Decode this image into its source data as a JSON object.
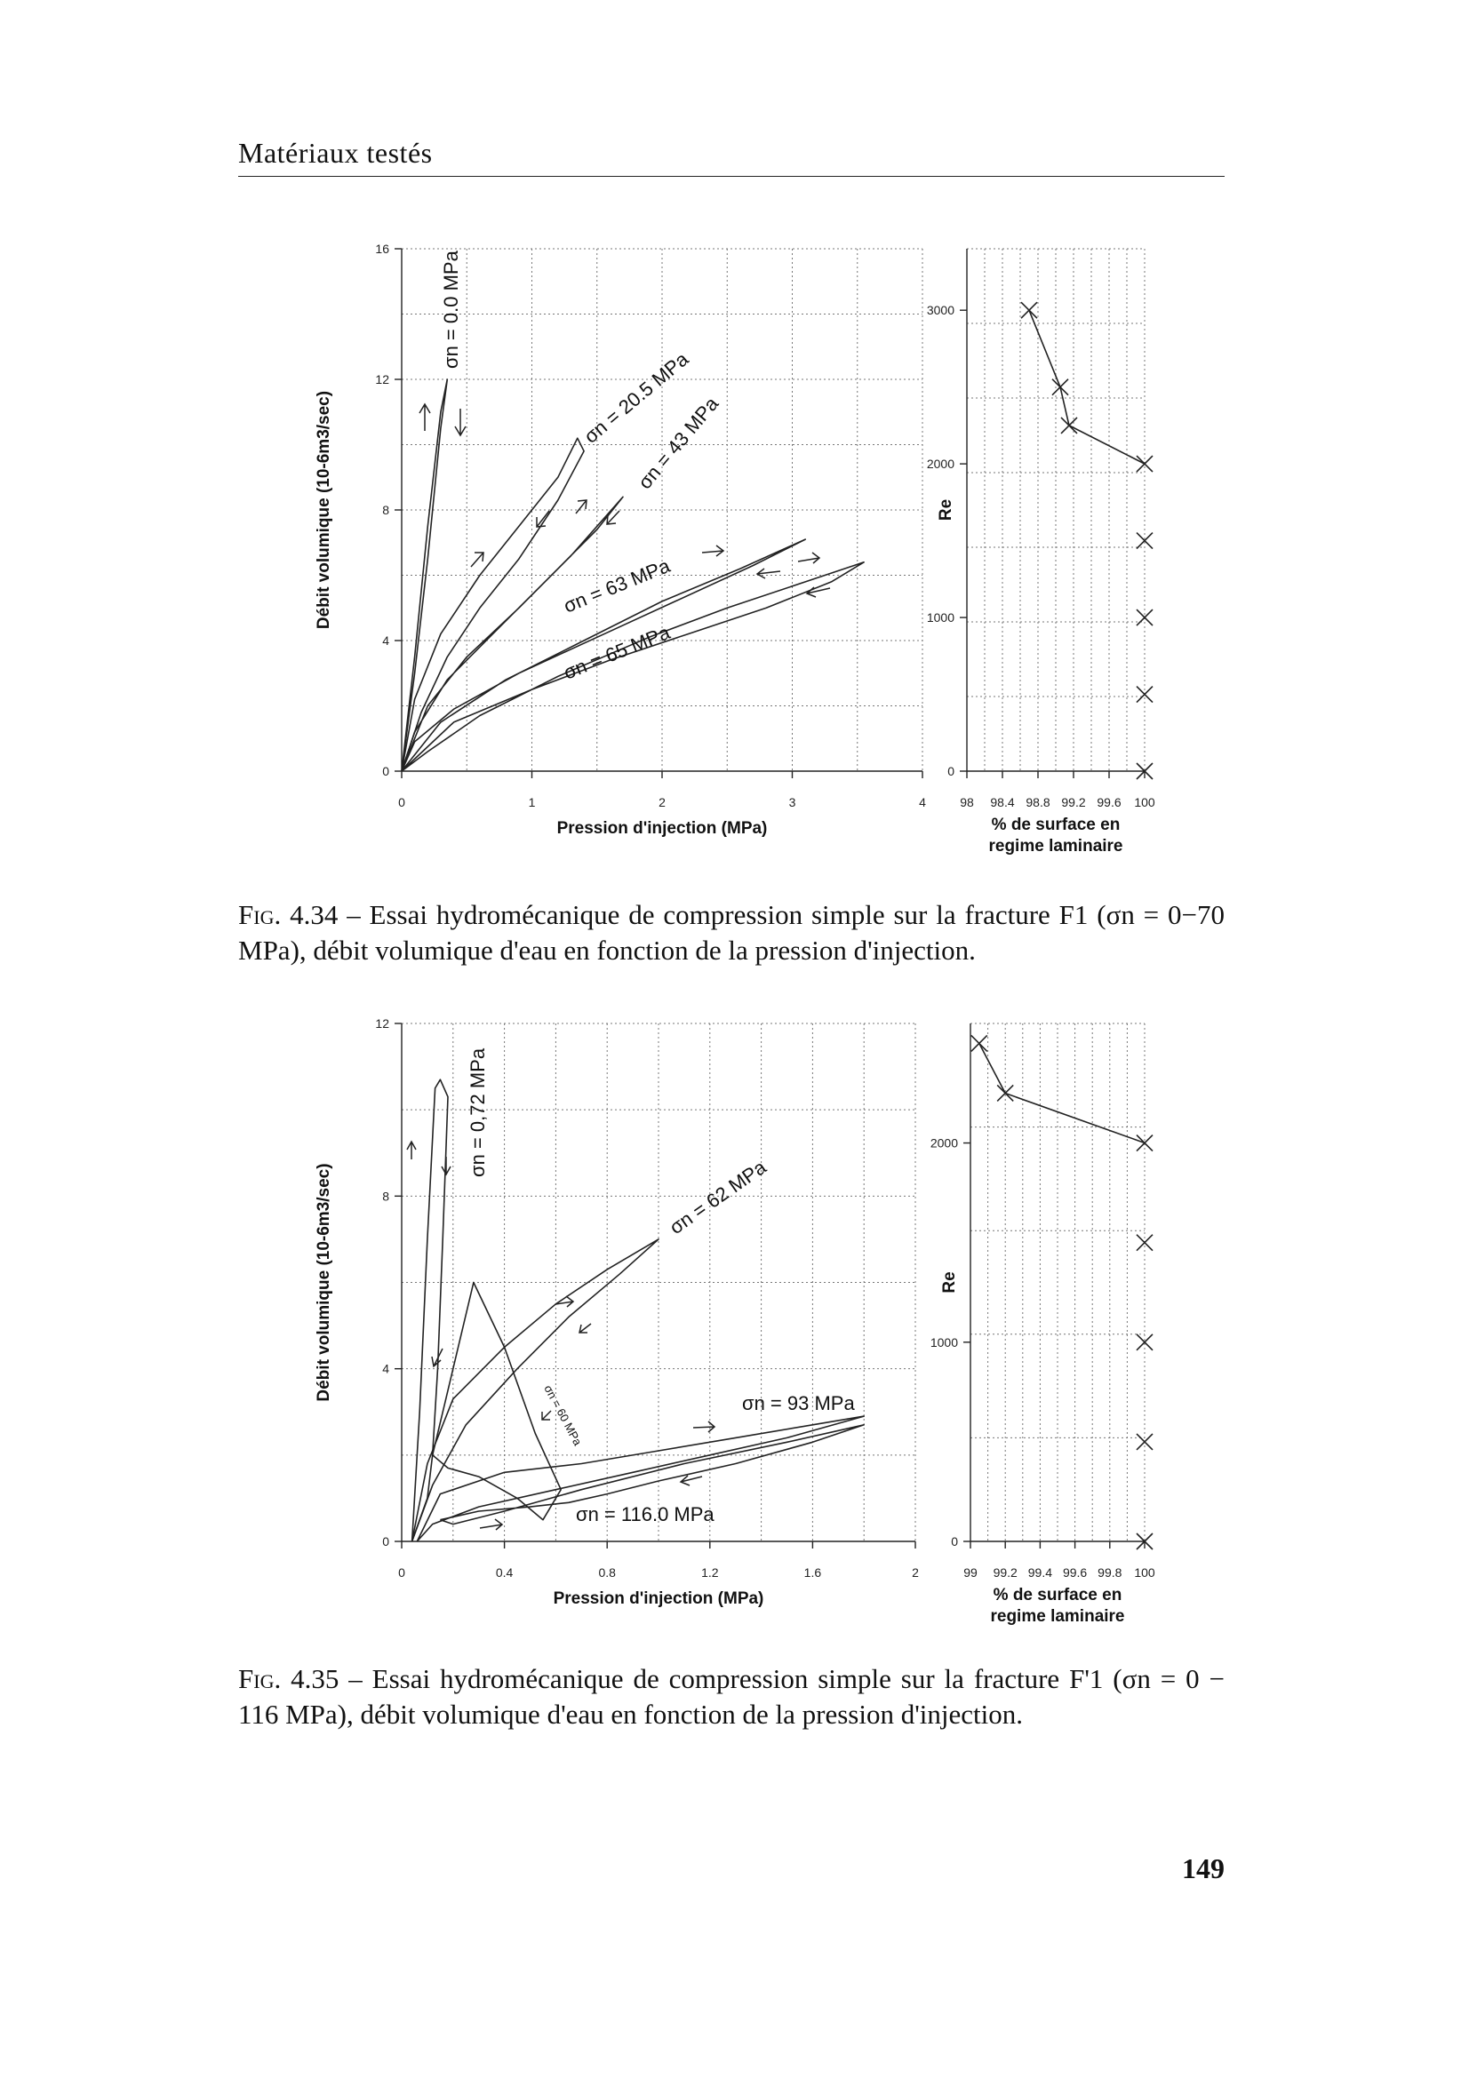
{
  "header": {
    "title": "Matériaux testés"
  },
  "figure1": {
    "caption_label": "Fig. 4.34",
    "caption_text": " – Essai hydromécanique de compression simple sur la fracture F1 (σn = 0−70 MPa), débit volumique d'eau en fonction de la pression d'injection."
  },
  "figure2": {
    "caption_label": "Fig. 4.35",
    "caption_text": " – Essai hydromécanique de compression simple sur la fracture F'1 (σn = 0 − 116 MPa), débit volumique d'eau en fonction de la pression d'injection."
  },
  "page_number": "149",
  "chart_data": [
    {
      "type": "line",
      "id": "fig434-left",
      "xlabel": "Pression d'injection (MPa)",
      "ylabel": "Débit volumique (10-6m3/sec)",
      "xlim": [
        0,
        4
      ],
      "ylim": [
        0,
        16
      ],
      "xticks": [
        "0",
        "1",
        "2",
        "3",
        "4"
      ],
      "yticks": [
        "0",
        "4",
        "8",
        "12",
        "16"
      ],
      "grid": true,
      "series": [
        {
          "name": "σn = 0.0 MPa",
          "x": [
            0,
            0.1,
            0.2,
            0.3,
            0.35,
            0.3,
            0.2,
            0.1,
            0
          ],
          "y": [
            0,
            3.5,
            7.5,
            11,
            12,
            10.5,
            6.5,
            3,
            0
          ]
        },
        {
          "name": "σn = 20.5 MPa",
          "x": [
            0,
            0.1,
            0.3,
            0.6,
            0.9,
            1.2,
            1.35,
            1.4,
            1.2,
            0.9,
            0.6,
            0.35,
            0.15,
            0
          ],
          "y": [
            0,
            2.2,
            4.2,
            6,
            7.5,
            9,
            10.2,
            9.8,
            8.3,
            6.5,
            5,
            3.5,
            1.8,
            0
          ]
        },
        {
          "name": "σn = 43 MPa",
          "x": [
            0,
            0.2,
            0.5,
            0.9,
            1.3,
            1.7,
            1.5,
            1.1,
            0.7,
            0.35,
            0.1,
            0
          ],
          "y": [
            0,
            2,
            3.5,
            5,
            6.6,
            8.4,
            7.4,
            5.8,
            4.2,
            2.8,
            1.2,
            0
          ]
        },
        {
          "name": "σn = 63 MPa",
          "x": [
            0,
            0.3,
            0.8,
            1.4,
            2,
            2.6,
            3.1,
            2.7,
            2.1,
            1.5,
            0.9,
            0.4,
            0.1,
            0
          ],
          "y": [
            0,
            1.5,
            2.8,
            4,
            5.2,
            6.2,
            7.1,
            6.3,
            5.2,
            4.1,
            3,
            1.9,
            0.9,
            0
          ]
        },
        {
          "name": "σn = 65 MPa",
          "x": [
            0,
            0.4,
            1,
            1.6,
            2.2,
            2.8,
            3.3,
            3.55,
            3.1,
            2.5,
            1.9,
            1.2,
            0.6,
            0.2,
            0
          ],
          "y": [
            0,
            1.5,
            2.5,
            3.4,
            4.2,
            5,
            5.8,
            6.4,
            5.8,
            5,
            4.1,
            2.9,
            1.7,
            0.6,
            0
          ]
        }
      ],
      "annotations": [
        "σn = 0.0 MPa",
        "σn = 20.5 MPa",
        "σn = 43 MPa",
        "σn = 63 MPa",
        "σn = 65 MPa"
      ]
    },
    {
      "type": "scatter",
      "id": "fig434-right",
      "xlabel": "% de surface en regime laminaire",
      "ylabel": "Re",
      "xlim": [
        98,
        100
      ],
      "ylim": [
        0,
        3400
      ],
      "xticks": [
        "98",
        "98.4",
        "98.8",
        "99.2",
        "99.6",
        "100"
      ],
      "yticks": [
        "0",
        "1000",
        "2000",
        "3000"
      ],
      "grid": true,
      "x": [
        98.7,
        99.05,
        99.15,
        100,
        100,
        100,
        100,
        100
      ],
      "y": [
        3000,
        2500,
        2250,
        2000,
        1500,
        1000,
        500,
        0
      ],
      "line_through_first": 4
    },
    {
      "type": "line",
      "id": "fig435-left",
      "xlabel": "Pression d'injection (MPa)",
      "ylabel": "Débit volumique (10-6m3/sec)",
      "xlim": [
        0,
        2
      ],
      "ylim": [
        0,
        12
      ],
      "xticks": [
        "0",
        "0.4",
        "0.8",
        "1.2",
        "1.6",
        "2"
      ],
      "yticks": [
        "0",
        "4",
        "8",
        "12"
      ],
      "grid": true,
      "series": [
        {
          "name": "σn = 0.72 MPa",
          "x": [
            0.04,
            0.07,
            0.1,
            0.13,
            0.15,
            0.18,
            0.16,
            0.14,
            0.12,
            0.1,
            0.07,
            0.04
          ],
          "y": [
            0,
            3,
            7,
            10.5,
            10.7,
            10.3,
            7,
            4,
            2,
            1,
            0.5,
            0
          ]
        },
        {
          "name": "σn = 62 MPa",
          "x": [
            0.04,
            0.1,
            0.2,
            0.4,
            0.6,
            0.8,
            1,
            0.85,
            0.65,
            0.45,
            0.25,
            0.12,
            0.04
          ],
          "y": [
            0,
            1.8,
            3.3,
            4.5,
            5.5,
            6.3,
            7,
            6.2,
            5.2,
            4,
            2.7,
            1.3,
            0
          ]
        },
        {
          "name": "σn = 60 MPa",
          "x": [
            0.12,
            0.2,
            0.28,
            0.4,
            0.52,
            0.62,
            0.55,
            0.45,
            0.3,
            0.18,
            0.12
          ],
          "y": [
            2,
            4,
            6,
            4.5,
            2.5,
            1.2,
            0.5,
            1,
            1.5,
            1.7,
            2
          ]
        },
        {
          "name": "σn = 93 MPa",
          "x": [
            0.06,
            0.15,
            0.4,
            0.7,
            1,
            1.3,
            1.6,
            1.8,
            1.5,
            1.2,
            0.9,
            0.6,
            0.3,
            0.12,
            0.06
          ],
          "y": [
            0,
            1.1,
            1.6,
            1.8,
            2.1,
            2.4,
            2.7,
            2.9,
            2.4,
            2,
            1.6,
            1.2,
            0.8,
            0.4,
            0
          ]
        },
        {
          "name": "σn = 116.0 MPa",
          "x": [
            0.15,
            0.3,
            0.5,
            0.65,
            0.8,
            1,
            1.3,
            1.6,
            1.8,
            1.5,
            1.1,
            0.7,
            0.4,
            0.2,
            0.15
          ],
          "y": [
            0.5,
            0.7,
            0.8,
            0.9,
            1.1,
            1.4,
            1.8,
            2.3,
            2.7,
            2.3,
            1.8,
            1.2,
            0.7,
            0.4,
            0.5
          ]
        }
      ],
      "annotations": [
        "σn = 0,72 MPa",
        "σn = 62 MPa",
        "σn = 60 MPa",
        "σn = 93 MPa",
        "σn = 116.0 MPa"
      ]
    },
    {
      "type": "scatter",
      "id": "fig435-right",
      "xlabel": "% de surface en regime laminaire",
      "ylabel": "Re",
      "xlim": [
        99,
        100
      ],
      "ylim": [
        0,
        2600
      ],
      "xticks": [
        "99",
        "99.2",
        "99.4",
        "99.6",
        "99.8",
        "100"
      ],
      "yticks": [
        "0",
        "1000",
        "2000"
      ],
      "grid": true,
      "x": [
        99.05,
        99.2,
        100,
        100,
        100,
        100,
        100
      ],
      "y": [
        2500,
        2250,
        2000,
        1500,
        1000,
        500,
        0
      ],
      "line_through_first": 3
    }
  ]
}
